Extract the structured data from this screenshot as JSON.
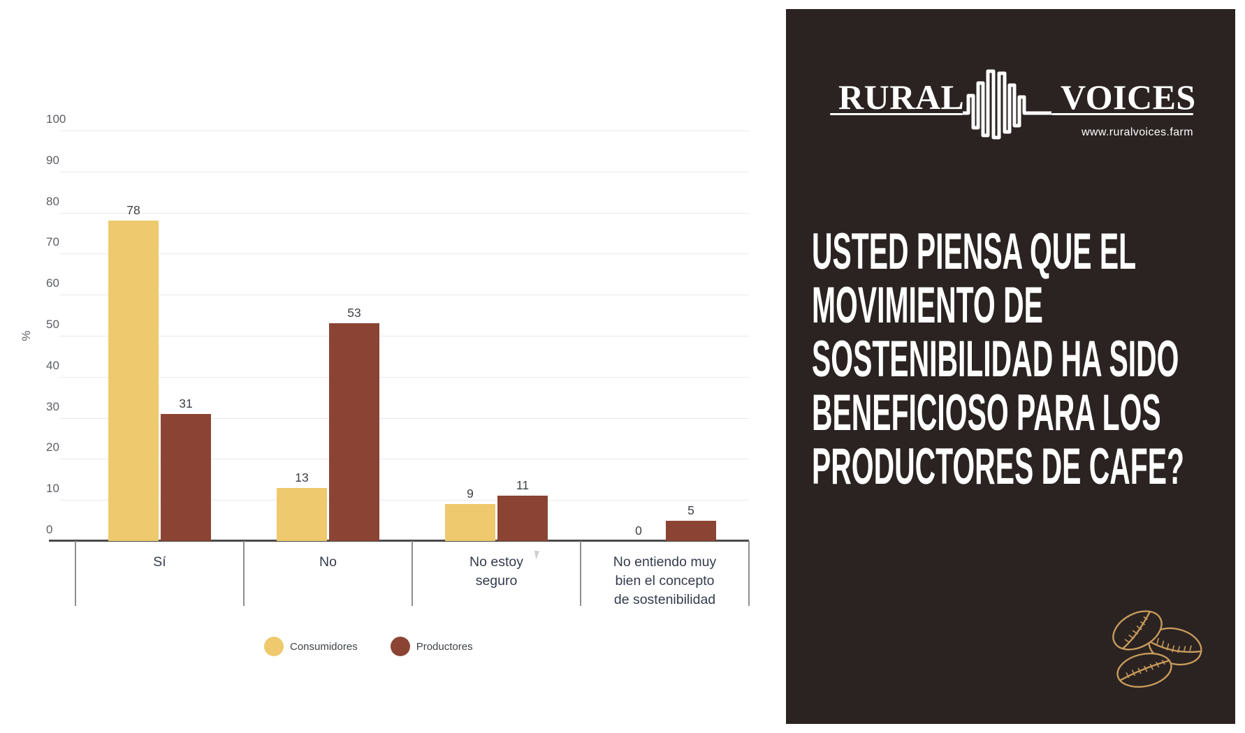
{
  "chart_data": {
    "type": "bar",
    "categories": [
      "Sí",
      "No",
      "No estoy seguro",
      "No entiendo muy bien el concepto de sostenibilidad"
    ],
    "category_label_lines": [
      [
        "Sí"
      ],
      [
        "No"
      ],
      [
        "No estoy",
        "seguro"
      ],
      [
        "No entiendo muy",
        "bien el concepto",
        "de sostenibilidad"
      ]
    ],
    "series": [
      {
        "name": "Consumidores",
        "color": "#eec96d",
        "values": [
          78,
          13,
          9,
          0
        ]
      },
      {
        "name": "Productores",
        "color": "#8b4434",
        "values": [
          31,
          53,
          11,
          5
        ]
      }
    ],
    "title": "",
    "xlabel": "",
    "ylabel": "%",
    "ylim": [
      0,
      100
    ],
    "ytick_step": 10,
    "grid": true,
    "legend_position": "bottom",
    "value_labels": true
  },
  "panel": {
    "logo": {
      "left_word": "RURAL",
      "right_word": "VOICES",
      "website": "www.ruralvoices.farm"
    },
    "question_lines": [
      "USTED PIENSA QUE EL",
      "MOVIMIENTO DE",
      "SOSTENIBILIDAD HA SIDO",
      "BENEFICIOSO PARA LOS",
      "PRODUCTORES DE CAFE?"
    ],
    "colors": {
      "background": "#2a2321",
      "text": "#ffffff",
      "beans": "#c89a5c"
    }
  }
}
